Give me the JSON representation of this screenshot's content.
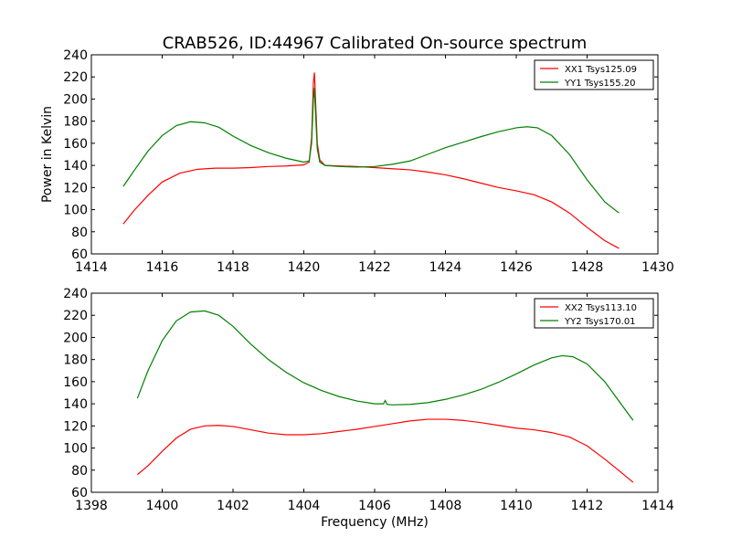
{
  "chart_data": [
    {
      "type": "line",
      "title": "CRAB526, ID:44967 Calibrated On-source spectrum",
      "xlabel": "",
      "ylabel": "Power in Kelvin",
      "xlim": [
        1414,
        1430
      ],
      "ylim": [
        60,
        240
      ],
      "xticks": [
        1414,
        1416,
        1418,
        1420,
        1422,
        1424,
        1426,
        1428,
        1430
      ],
      "yticks": [
        60,
        80,
        100,
        120,
        140,
        160,
        180,
        200,
        220,
        240
      ],
      "legend_position": "top-right",
      "series": [
        {
          "name": "XX1 Tsys125.09",
          "color": "#ff0000",
          "x": [
            1414.9,
            1415.2,
            1415.6,
            1416.0,
            1416.5,
            1417.0,
            1417.5,
            1418.0,
            1418.5,
            1419.0,
            1419.5,
            1420.0,
            1420.15,
            1420.22,
            1420.27,
            1420.3,
            1420.33,
            1420.38,
            1420.45,
            1420.6,
            1421.0,
            1421.5,
            1422.0,
            1422.5,
            1423.0,
            1423.5,
            1424.0,
            1424.5,
            1425.0,
            1425.5,
            1426.0,
            1426.5,
            1427.0,
            1427.5,
            1428.0,
            1428.5,
            1428.9
          ],
          "y": [
            87,
            99,
            113,
            125,
            133,
            136.5,
            137.5,
            137.5,
            138,
            139,
            139.5,
            140.5,
            143,
            165,
            215,
            224,
            200,
            160,
            145,
            140,
            139.5,
            139,
            138,
            137,
            136,
            134,
            131.5,
            128,
            124,
            120,
            117,
            113.5,
            107,
            97,
            84,
            72,
            65
          ]
        },
        {
          "name": "YY1 Tsys155.20",
          "color": "#008000",
          "x": [
            1414.9,
            1415.2,
            1415.6,
            1416.0,
            1416.4,
            1416.8,
            1417.2,
            1417.6,
            1418.0,
            1418.5,
            1419.0,
            1419.5,
            1420.0,
            1420.15,
            1420.22,
            1420.27,
            1420.3,
            1420.33,
            1420.38,
            1420.45,
            1420.6,
            1421.0,
            1421.5,
            1422.0,
            1422.5,
            1423.0,
            1423.5,
            1424.0,
            1424.5,
            1425.0,
            1425.5,
            1426.0,
            1426.3,
            1426.6,
            1427.0,
            1427.5,
            1428.0,
            1428.5,
            1428.9
          ],
          "y": [
            121,
            135,
            153,
            167,
            176,
            179.5,
            178.5,
            174.5,
            166.5,
            158,
            151.5,
            146.5,
            143,
            144,
            160,
            200,
            210,
            188,
            155,
            143,
            140,
            139,
            138.5,
            139,
            141,
            144,
            150,
            156,
            161,
            166,
            170.5,
            174,
            175,
            174,
            167,
            150,
            127,
            107,
            97
          ]
        }
      ]
    },
    {
      "type": "line",
      "title": "",
      "xlabel": "Frequency (MHz)",
      "ylabel": "",
      "xlim": [
        1398,
        1414
      ],
      "ylim": [
        60,
        240
      ],
      "xticks": [
        1398,
        1400,
        1402,
        1404,
        1406,
        1408,
        1410,
        1412,
        1414
      ],
      "yticks": [
        60,
        80,
        100,
        120,
        140,
        160,
        180,
        200,
        220,
        240
      ],
      "legend_position": "top-right",
      "series": [
        {
          "name": "XX2 Tsys113.10",
          "color": "#ff0000",
          "x": [
            1399.3,
            1399.6,
            1400.0,
            1400.4,
            1400.8,
            1401.2,
            1401.6,
            1402.0,
            1402.5,
            1403.0,
            1403.5,
            1404.0,
            1404.5,
            1405.0,
            1405.5,
            1406.0,
            1406.5,
            1407.0,
            1407.5,
            1408.0,
            1408.5,
            1409.0,
            1409.5,
            1410.0,
            1410.5,
            1411.0,
            1411.5,
            1412.0,
            1412.5,
            1413.0,
            1413.3
          ],
          "y": [
            76,
            84,
            97,
            109,
            117,
            120,
            120.5,
            119.5,
            116.5,
            113.5,
            112,
            112,
            113,
            115,
            117,
            119.5,
            122,
            124.5,
            126,
            126,
            125,
            123,
            120.5,
            118,
            116.5,
            114,
            110,
            102,
            90,
            77,
            69
          ]
        },
        {
          "name": "YY2 Tsys170.01",
          "color": "#008000",
          "x": [
            1399.3,
            1399.6,
            1400.0,
            1400.4,
            1400.8,
            1401.2,
            1401.6,
            1402.0,
            1402.5,
            1403.0,
            1403.5,
            1404.0,
            1404.5,
            1405.0,
            1405.5,
            1406.0,
            1406.25,
            1406.3,
            1406.35,
            1406.5,
            1407.0,
            1407.5,
            1408.0,
            1408.5,
            1409.0,
            1409.5,
            1410.0,
            1410.5,
            1411.0,
            1411.3,
            1411.6,
            1412.0,
            1412.5,
            1413.0,
            1413.3
          ],
          "y": [
            145,
            170,
            197,
            215,
            223,
            224,
            220,
            210,
            194,
            180,
            168.5,
            159,
            152,
            146.5,
            142.5,
            140,
            140,
            143,
            139.5,
            139,
            139.5,
            141,
            144,
            148,
            153,
            159.5,
            167,
            175,
            181.5,
            183.5,
            182.5,
            176,
            160,
            138,
            125
          ]
        }
      ]
    }
  ]
}
